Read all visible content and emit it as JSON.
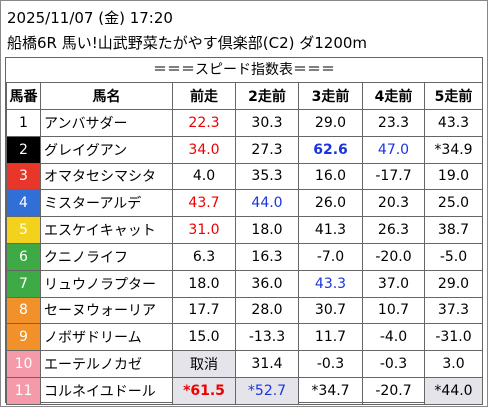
{
  "header": {
    "datetime": "2025/11/07 (金) 17:20",
    "race": "船橋6R 馬い!山武野菜たがやす倶楽部(C2) ダ1200m"
  },
  "table": {
    "title": "＝＝＝スピード指数表＝＝＝",
    "columns": [
      "馬番",
      "馬名",
      "前走",
      "2走前",
      "3走前",
      "4走前",
      "5走前"
    ],
    "rows": [
      [
        "1",
        "アンバサダー",
        "22.3",
        "30.3",
        "29.0",
        "23.3",
        "43.3"
      ],
      [
        "2",
        "グレイグアン",
        "34.0",
        "27.3",
        "62.6",
        "47.0",
        "*34.9"
      ],
      [
        "3",
        "オマタセシマシタ",
        "4.0",
        "35.3",
        "16.0",
        "-17.7",
        "19.0"
      ],
      [
        "4",
        "ミスターアルデ",
        "43.7",
        "44.0",
        "26.0",
        "20.3",
        "25.0"
      ],
      [
        "5",
        "エスケイキャット",
        "31.0",
        "18.0",
        "41.3",
        "26.3",
        "38.7"
      ],
      [
        "6",
        "クニノライフ",
        "6.3",
        "16.3",
        "-7.0",
        "-20.0",
        "-5.0"
      ],
      [
        "7",
        "リュウノラプター",
        "18.0",
        "36.0",
        "43.3",
        "37.0",
        "29.0"
      ],
      [
        "8",
        "セーヌウォーリア",
        "17.7",
        "28.0",
        "30.7",
        "10.7",
        "37.3"
      ],
      [
        "9",
        "ノボザドリーム",
        "15.0",
        "-13.3",
        "11.7",
        "-4.0",
        "-31.0"
      ],
      [
        "10",
        "エーテルノカゼ",
        "取消",
        "31.4",
        "-0.3",
        "-0.3",
        "3.0"
      ],
      [
        "11",
        "コルネイユドール",
        "*61.5",
        "*52.7",
        "*34.7",
        "-20.7",
        "*44.0"
      ]
    ]
  }
}
